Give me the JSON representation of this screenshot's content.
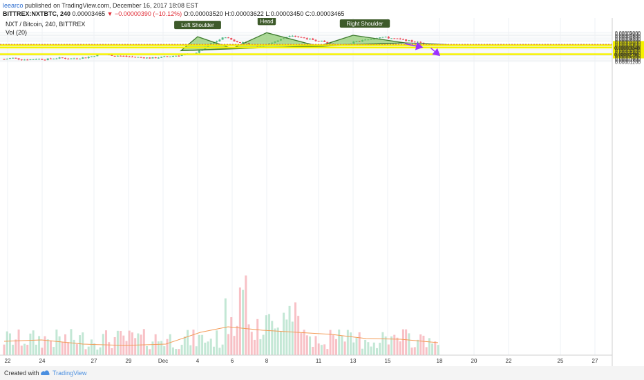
{
  "header": {
    "author": "leearco",
    "published_text": " published on TradingView.com, December 16, 2017 18:08 EST",
    "symbol": "BITTREX:NXTBTC, 240",
    "last_price": "0.00003465",
    "change": "−0.00000390 (−10.12%)",
    "ohlc": "O:0.00003520 H:0.00003622 L:0.00003450 C:0.00003465"
  },
  "chart_data": {
    "type": "candlestick",
    "title": "NXT / Bitcoin, 240, BITTREX",
    "volume_label": "Vol (20)",
    "y_ticks": [
      "0.00005000",
      "0.00004800",
      "0.00004600",
      "0.00004400",
      "0.00004200",
      "0.00004000",
      "0.00003800",
      "0.00003600",
      "0.00003400",
      "0.00003200",
      "0.00003000",
      "0.00002800",
      "0.00002600",
      "0.00002400",
      "0.00002200",
      "0.00002000",
      "0.00001800",
      "0.00001600",
      "0.00001400",
      "0.00001200"
    ],
    "x_ticks": [
      "22",
      "24",
      "27",
      "29",
      "Dec",
      "4",
      "6",
      "8",
      "11",
      "13",
      "15",
      "18",
      "20",
      "22",
      "25",
      "27"
    ],
    "grid": true,
    "levels": [
      {
        "value": 3.358e-05,
        "label": "0.00003358",
        "color": "#f5f200"
      },
      {
        "value": 3.048e-05,
        "label": "0.00003048",
        "color": "#f5f200"
      },
      {
        "value": 2.181e-05,
        "label": "0.00002181",
        "color": "#f5f200"
      }
    ],
    "current_price": 3.465e-05,
    "annotations": [
      {
        "text": "Left Shoulder",
        "x": "4",
        "y": 4.45e-05
      },
      {
        "text": "Head",
        "x": "8",
        "y": 4.97e-05
      },
      {
        "text": "Right Shoulder",
        "x": "13",
        "y": 4.64e-05
      }
    ],
    "pattern": {
      "name": "head and shoulders",
      "left_shoulder": [
        [
          "3",
          2.64e-05
        ],
        [
          "4",
          4.45e-05
        ],
        [
          "6",
          2.92e-05
        ]
      ],
      "head": [
        [
          "6",
          2.92e-05
        ],
        [
          "8",
          4.97e-05
        ],
        [
          "11",
          3.2e-05
        ]
      ],
      "right_shoulder": [
        [
          "11",
          3.2e-05
        ],
        [
          "13",
          4.64e-05
        ],
        [
          "16",
          3.66e-05
        ]
      ],
      "neckline": [
        [
          "3",
          2.64e-05
        ],
        [
          "16",
          3.66e-05
        ],
        [
          "16.5",
          3.42e-05
        ]
      ]
    },
    "projection": [
      {
        "from": [
          "16",
          3.55e-05
        ],
        "to": [
          "17",
          3.08e-05
        ]
      },
      {
        "from": [
          "17.5",
          2.98e-05
        ],
        "to": [
          "18",
          2.04e-05
        ]
      }
    ],
    "candles": {
      "x_start": "21",
      "x_end": "16.6",
      "close_path": [
        1.55e-05,
        1.7e-05,
        1.52e-05,
        1.48e-05,
        1.6e-05,
        1.5e-05,
        1.65e-05,
        1.7e-05,
        1.6e-05,
        1.68e-05,
        1.75e-05,
        2e-05,
        2.22e-05,
        2.05e-05,
        1.98e-05,
        1.9e-05,
        1.82e-05,
        1.75e-05,
        1.68e-05,
        1.78e-05,
        1.9e-05,
        2e-05,
        2.1e-05,
        2.18e-05,
        2.65e-05,
        3.4e-05,
        3.9e-05,
        4.45e-05,
        3.95e-05,
        3.7e-05,
        3.45e-05,
        3.2e-05,
        3.4e-05,
        3.8e-05,
        4.2e-05,
        4.7e-05,
        4.4e-05,
        4.2e-05,
        4e-05,
        3.8e-05,
        3.45e-05,
        3.35e-05,
        3.55e-05,
        3.8e-05,
        4e-05,
        4.2e-05,
        4.45e-05,
        4.3e-05,
        4.15e-05,
        4e-05,
        3.8e-05,
        3.65e-05,
        3.5e-05,
        3.46e-05
      ]
    }
  }
}
